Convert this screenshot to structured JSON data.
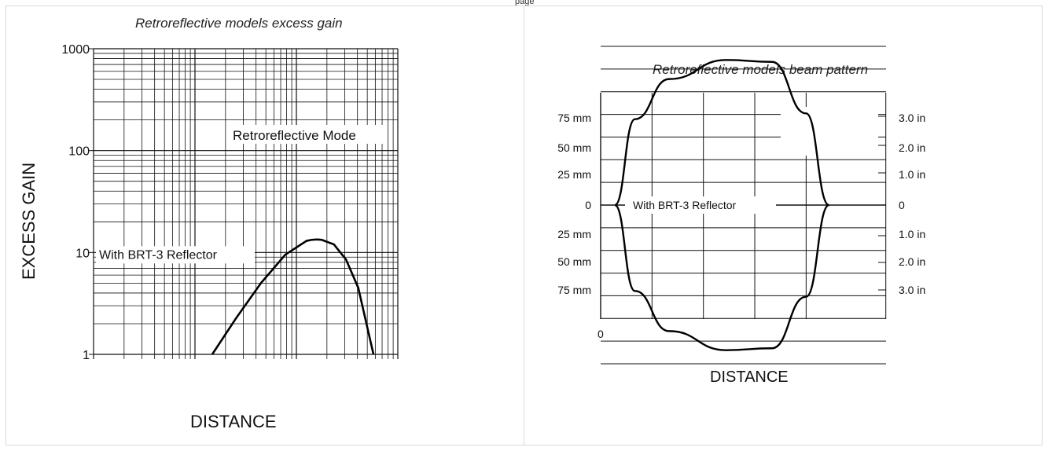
{
  "page_label": "page",
  "chart_data": [
    {
      "type": "line",
      "title": "Retroreflective models excess gain",
      "xlabel": "DISTANCE",
      "ylabel": "EXCESS GAIN",
      "yscale": "log",
      "ylim": [
        1,
        1000
      ],
      "y_ticks": [
        "1",
        "10",
        "100",
        "1000"
      ],
      "x_axis_numbers_shown": false,
      "grid": true,
      "annotations": [
        "Retroreflective Mode"
      ],
      "series": [
        {
          "name": "With BRT-3 Reflector",
          "x": [
            0.39,
            0.47,
            0.55,
            0.63,
            0.7,
            0.75,
            0.79,
            0.83,
            0.87,
            0.92
          ],
          "y": [
            1,
            2.3,
            5,
            9.5,
            13,
            13.3,
            12,
            8.5,
            4.5,
            1
          ]
        }
      ]
    },
    {
      "type": "line",
      "title": "Retroreflective models beam pattern",
      "xlabel": "DISTANCE",
      "x_ticks": [
        "0"
      ],
      "y_ticks_left": [
        "75 mm",
        "50 mm",
        "25 mm",
        "0",
        "25 mm",
        "50 mm",
        "75 mm"
      ],
      "y_ticks_right": [
        "3.0 in",
        "2.0 in",
        "1.0 in",
        "0",
        "1.0 in",
        "2.0 in",
        "3.0 in"
      ],
      "grid": true,
      "series": [
        {
          "name": "With BRT-3 Reflector",
          "x": [
            0.05,
            0.12,
            0.24,
            0.44,
            0.6,
            0.72,
            0.8
          ],
          "y_mm": [
            0,
            45,
            66,
            76,
            75,
            48,
            0
          ],
          "symmetric": true
        }
      ]
    }
  ]
}
